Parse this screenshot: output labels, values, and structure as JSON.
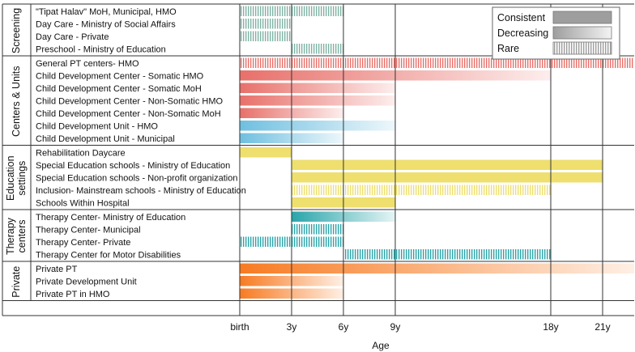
{
  "chart_data": {
    "type": "gantt",
    "xlabel": "Age",
    "x_ticks": [
      "birth",
      "3y",
      "6y",
      "9y",
      "18y",
      "21y"
    ],
    "x_tick_values": [
      0,
      3,
      6,
      9,
      18,
      21
    ],
    "legend": [
      {
        "name": "Consistent",
        "pattern": "consistent"
      },
      {
        "name": "Decreasing",
        "pattern": "decreasing"
      },
      {
        "name": "Rare",
        "pattern": "rare"
      }
    ],
    "colors": {
      "screening": "#7fb3a5",
      "centers_red": "#e8706a",
      "centers_blue": "#6fbfe0",
      "education": "#eedf6e",
      "therapy": "#2aa5aa",
      "private": "#f77b22",
      "legend_gray": "#9e9e9e",
      "grid": "#333333"
    },
    "groups": [
      {
        "name": "Screening",
        "rows": [
          {
            "label": "\"Tipat Halav\" MoH, Municipal, HMO",
            "color": "#7fb3a5",
            "segments": [
              {
                "start": 0,
                "end": 6,
                "pattern": "rare"
              }
            ]
          },
          {
            "label": "Day Care - Ministry of Social Affairs",
            "color": "#7fb3a5",
            "segments": [
              {
                "start": 0,
                "end": 3,
                "pattern": "rare"
              }
            ]
          },
          {
            "label": "Day Care - Private",
            "color": "#7fb3a5",
            "segments": [
              {
                "start": 0,
                "end": 3,
                "pattern": "rare"
              }
            ]
          },
          {
            "label": "Preschool - Ministry of Education",
            "color": "#7fb3a5",
            "segments": [
              {
                "start": 3,
                "end": 6,
                "pattern": "rare"
              }
            ]
          }
        ]
      },
      {
        "name": "Centers & Units",
        "rows": [
          {
            "label": "General PT centers- HMO",
            "color": "#e8706a",
            "segments": [
              {
                "start": 0,
                "end": 24,
                "pattern": "rare"
              }
            ]
          },
          {
            "label": "Child Development Center - Somatic HMO",
            "color": "#e8706a",
            "segments": [
              {
                "start": 0,
                "end": 18,
                "pattern": "decreasing"
              }
            ]
          },
          {
            "label": "Child Development Center - Somatic MoH",
            "color": "#e8706a",
            "segments": [
              {
                "start": 0,
                "end": 9,
                "pattern": "decreasing"
              }
            ]
          },
          {
            "label": "Child Development Center - Non-Somatic HMO",
            "color": "#e8706a",
            "segments": [
              {
                "start": 0,
                "end": 9,
                "pattern": "decreasing"
              }
            ]
          },
          {
            "label": "Child Development Center - Non-Somatic MoH",
            "color": "#e8706a",
            "segments": [
              {
                "start": 0,
                "end": 6,
                "pattern": "decreasing"
              }
            ]
          },
          {
            "label": "Child Development Unit - HMO",
            "color": "#6fbfe0",
            "segments": [
              {
                "start": 0,
                "end": 9,
                "pattern": "decreasing"
              }
            ]
          },
          {
            "label": "Child Development Unit - Municipal",
            "color": "#6fbfe0",
            "segments": [
              {
                "start": 0,
                "end": 6,
                "pattern": "decreasing"
              }
            ]
          }
        ]
      },
      {
        "name": "Education settings",
        "name_lines": [
          "Education",
          "settings"
        ],
        "rows": [
          {
            "label": "Rehabilitation Daycare",
            "color": "#eedf6e",
            "segments": [
              {
                "start": 0,
                "end": 3,
                "pattern": "consistent"
              }
            ]
          },
          {
            "label": "Special Education schools - Ministry of Education",
            "color": "#eedf6e",
            "segments": [
              {
                "start": 3,
                "end": 21,
                "pattern": "consistent"
              }
            ]
          },
          {
            "label": "Special Education schools - Non-profit organization",
            "color": "#eedf6e",
            "segments": [
              {
                "start": 3,
                "end": 21,
                "pattern": "consistent"
              }
            ]
          },
          {
            "label": "Inclusion- Mainstream schools - Ministry of Education",
            "color": "#eedf6e",
            "segments": [
              {
                "start": 3,
                "end": 18,
                "pattern": "rare"
              }
            ]
          },
          {
            "label": "Schools Within Hospital",
            "color": "#eedf6e",
            "segments": [
              {
                "start": 3,
                "end": 9,
                "pattern": "consistent"
              }
            ]
          }
        ]
      },
      {
        "name": "Therapy centers",
        "name_lines": [
          "Therapy",
          "centers"
        ],
        "rows": [
          {
            "label": "Therapy Center- Ministry of Education",
            "color": "#2aa5aa",
            "segments": [
              {
                "start": 3,
                "end": 9,
                "pattern": "decreasing"
              }
            ]
          },
          {
            "label": "Therapy Center- Municipal",
            "color": "#2aa5aa",
            "segments": [
              {
                "start": 3,
                "end": 6,
                "pattern": "rare"
              }
            ]
          },
          {
            "label": "Therapy Center- Private",
            "color": "#2aa5aa",
            "segments": [
              {
                "start": 0,
                "end": 6,
                "pattern": "rare"
              }
            ]
          },
          {
            "label": "Therapy Center for Motor Disabilities",
            "color": "#2aa5aa",
            "segments": [
              {
                "start": 6,
                "end": 18,
                "pattern": "rare"
              }
            ]
          }
        ]
      },
      {
        "name": "Private",
        "rows": [
          {
            "label": "Private PT",
            "color": "#f77b22",
            "segments": [
              {
                "start": 0,
                "end": 24,
                "pattern": "decreasing"
              }
            ]
          },
          {
            "label": "Private Development Unit",
            "color": "#f77b22",
            "segments": [
              {
                "start": 0,
                "end": 6,
                "pattern": "decreasing"
              }
            ]
          },
          {
            "label": "Private PT in HMO",
            "color": "#f77b22",
            "segments": [
              {
                "start": 0,
                "end": 6,
                "pattern": "decreasing"
              }
            ]
          }
        ]
      }
    ]
  }
}
